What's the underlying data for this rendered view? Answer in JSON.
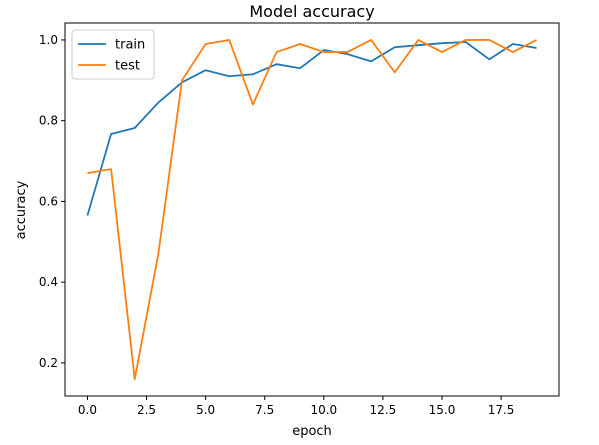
{
  "chart_data": {
    "type": "line",
    "title": "Model accuracy",
    "xlabel": "epoch",
    "ylabel": "accuracy",
    "xlim": [
      -0.95,
      19.95
    ],
    "ylim": [
      0.118,
      1.042
    ],
    "xticks": [
      0.0,
      2.5,
      5.0,
      7.5,
      10.0,
      12.5,
      15.0,
      17.5
    ],
    "xtick_labels": [
      "0.0",
      "2.5",
      "5.0",
      "7.5",
      "10.0",
      "12.5",
      "15.0",
      "17.5"
    ],
    "yticks": [
      0.2,
      0.4,
      0.6,
      0.8,
      1.0
    ],
    "ytick_labels": [
      "0.2",
      "0.4",
      "0.6",
      "0.8",
      "1.0"
    ],
    "grid": false,
    "legend_position": "top-left",
    "x": [
      0,
      1,
      2,
      3,
      4,
      5,
      6,
      7,
      8,
      9,
      10,
      11,
      12,
      13,
      14,
      15,
      16,
      17,
      18,
      19
    ],
    "series": [
      {
        "name": "train",
        "color": "#1f77b4",
        "values": [
          0.565,
          0.767,
          0.782,
          0.845,
          0.895,
          0.925,
          0.91,
          0.915,
          0.94,
          0.93,
          0.975,
          0.965,
          0.947,
          0.982,
          0.987,
          0.992,
          0.995,
          0.952,
          0.99,
          0.98
        ]
      },
      {
        "name": "test",
        "color": "#ff7f0e",
        "values": [
          0.67,
          0.68,
          0.16,
          0.47,
          0.9,
          0.99,
          1.0,
          0.84,
          0.97,
          0.99,
          0.97,
          0.97,
          1.0,
          0.92,
          1.0,
          0.97,
          1.0,
          1.0,
          0.97,
          1.0
        ]
      }
    ]
  }
}
